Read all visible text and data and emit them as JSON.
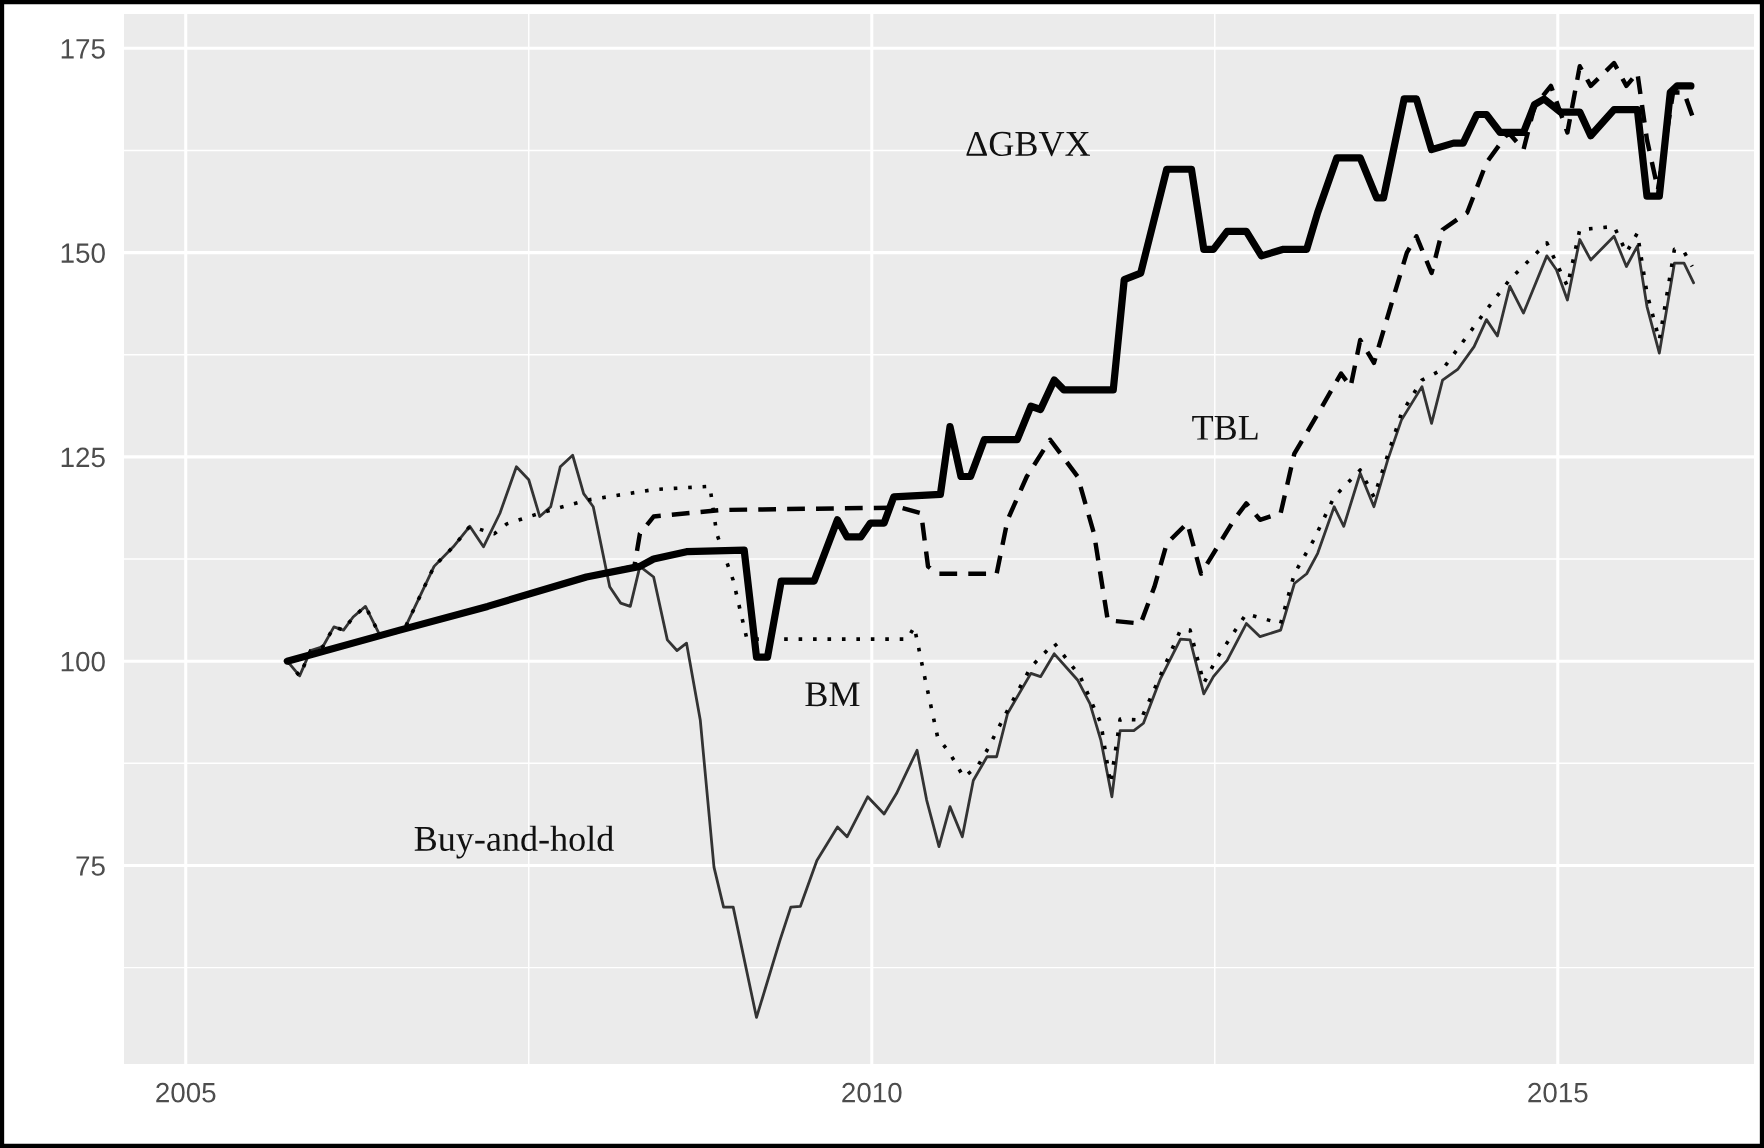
{
  "chart_data": {
    "type": "line",
    "xlim": [
      2004.55,
      2016.43
    ],
    "xticks": [
      2005,
      2010,
      2015
    ],
    "ylim": [
      50.7,
      179.2
    ],
    "yticks": [
      75,
      100,
      125,
      150,
      175
    ],
    "grid": true,
    "legend": false,
    "series": [
      {
        "name": "Buy-and-hold",
        "color": "#333333",
        "line_style": "solid",
        "x": [
          2005.74,
          2005.83,
          2005.91,
          2006.0,
          2006.08,
          2006.15,
          2006.22,
          2006.31,
          2006.42,
          2006.59,
          2006.81,
          2006.95,
          2007.07,
          2007.17,
          2007.29,
          2007.41,
          2007.5,
          2007.58,
          2007.66,
          2007.73,
          2007.82,
          2007.9,
          2007.97,
          2008.09,
          2008.17,
          2008.24,
          2008.31,
          2008.41,
          2008.51,
          2008.58,
          2008.65,
          2008.75,
          2008.85,
          2008.92,
          2008.99,
          2009.16,
          2009.33,
          2009.41,
          2009.48,
          2009.6,
          2009.75,
          2009.82,
          2009.97,
          2010.09,
          2010.18,
          2010.33,
          2010.4,
          2010.49,
          2010.57,
          2010.66,
          2010.74,
          2010.84,
          2010.91,
          2010.99,
          2011.16,
          2011.23,
          2011.33,
          2011.5,
          2011.59,
          2011.67,
          2011.75,
          2011.81,
          2011.91,
          2011.98,
          2012.1,
          2012.25,
          2012.32,
          2012.42,
          2012.49,
          2012.59,
          2012.73,
          2012.83,
          2012.98,
          2013.08,
          2013.17,
          2013.25,
          2013.37,
          2013.44,
          2013.56,
          2013.66,
          2013.76,
          2013.86,
          2014.01,
          2014.08,
          2014.16,
          2014.27,
          2014.39,
          2014.48,
          2014.56,
          2014.65,
          2014.75,
          2014.92,
          2014.99,
          2015.07,
          2015.16,
          2015.24,
          2015.41,
          2015.5,
          2015.58,
          2015.65,
          2015.74,
          2015.85,
          2015.92,
          2015.99
        ],
        "values": [
          100,
          98.2,
          101.3,
          101.8,
          104.2,
          103.8,
          105.4,
          106.7,
          103,
          103.8,
          111.6,
          114,
          116.5,
          114,
          118.1,
          123.8,
          122.2,
          117.7,
          118.9,
          123.8,
          125.2,
          120.5,
          118.9,
          109.1,
          107.1,
          106.7,
          111.6,
          110.3,
          102.6,
          101.3,
          102.2,
          92.8,
          74.8,
          69.9,
          69.9,
          56.4,
          65.8,
          69.9,
          70,
          75.6,
          79.7,
          78.5,
          83.4,
          81.3,
          83.8,
          89.1,
          83,
          77.3,
          82.2,
          78.5,
          85.4,
          88.3,
          88.3,
          93.6,
          98.5,
          98.1,
          100.9,
          97.7,
          94.8,
          90.3,
          83.4,
          91.5,
          91.5,
          92.4,
          97.7,
          102.7,
          102.6,
          96,
          98.1,
          100.1,
          104.6,
          103,
          103.8,
          109.5,
          110.7,
          113.2,
          118.9,
          116.5,
          123,
          118.9,
          124.6,
          129.5,
          133.6,
          129.1,
          134.4,
          135.7,
          138.5,
          141.8,
          139.8,
          145.9,
          142.6,
          149.6,
          147.9,
          144.2,
          151.6,
          149.1,
          152,
          148.3,
          150.8,
          143.4,
          137.7,
          148.7,
          148.7,
          146.3
        ]
      },
      {
        "name": "BM",
        "color": "#000000",
        "line_style": "dotted",
        "x": [
          2005.74,
          2005.83,
          2005.91,
          2006.0,
          2006.08,
          2006.15,
          2006.22,
          2006.31,
          2006.42,
          2006.59,
          2006.81,
          2006.95,
          2007.07,
          2007.25,
          2007.34,
          2007.58,
          2007.92,
          2008.41,
          2008.82,
          2008.87,
          2008.99,
          2009.09,
          2010.26,
          2010.31,
          2010.38,
          2010.48,
          2010.57,
          2010.67,
          2010.77,
          2010.84,
          2010.99,
          2011.16,
          2011.33,
          2011.52,
          2011.67,
          2011.74,
          2011.81,
          2011.96,
          2012.1,
          2012.25,
          2012.32,
          2012.42,
          2012.52,
          2012.73,
          2012.98,
          2013.08,
          2013.22,
          2013.37,
          2013.56,
          2013.66,
          2013.86,
          2014.01,
          2014.16,
          2014.48,
          2014.65,
          2014.92,
          2015.07,
          2015.16,
          2015.41,
          2015.5,
          2015.58,
          2015.65,
          2015.74,
          2015.85,
          2015.92,
          2015.98
        ],
        "values": [
          100,
          98.2,
          101.3,
          101.8,
          104.2,
          103.8,
          105.4,
          106.7,
          103,
          103.8,
          111.6,
          114,
          116.5,
          115.6,
          116.8,
          118.1,
          119.7,
          121,
          121.4,
          115.6,
          109.9,
          102.7,
          102.7,
          104.2,
          98.5,
          90.7,
          88.7,
          85.8,
          87.1,
          89.1,
          94,
          99.3,
          102.2,
          98.1,
          92.4,
          85,
          92.9,
          92.8,
          98.1,
          103.8,
          103.8,
          97.3,
          100.5,
          105.8,
          104.6,
          110.7,
          114.8,
          120.1,
          123.4,
          120.1,
          130.3,
          134.4,
          135.7,
          143,
          146.7,
          151.2,
          145.9,
          152.8,
          153.2,
          150,
          152.4,
          145,
          139.3,
          150.4,
          150.1,
          148.3
        ]
      },
      {
        "name": "TBL",
        "color": "#000000",
        "line_style": "dashed",
        "x": [
          2005.74,
          2006.56,
          2007.2,
          2007.92,
          2008.27,
          2008.31,
          2008.41,
          2008.9,
          2010.21,
          2010.36,
          2010.41,
          2010.48,
          2010.91,
          2010.99,
          2011.13,
          2011.3,
          2011.5,
          2011.62,
          2011.72,
          2011.96,
          2012.06,
          2012.15,
          2012.3,
          2012.4,
          2012.64,
          2012.73,
          2012.83,
          2012.98,
          2013.08,
          2013.27,
          2013.42,
          2013.49,
          2013.56,
          2013.66,
          2013.81,
          2013.9,
          2013.97,
          2014.08,
          2014.16,
          2014.34,
          2014.48,
          2014.64,
          2014.75,
          2014.83,
          2014.95,
          2015.07,
          2015.16,
          2015.24,
          2015.41,
          2015.5,
          2015.58,
          2015.65,
          2015.73,
          2015.84,
          2015.92,
          2015.99
        ],
        "values": [
          100,
          103.8,
          106.7,
          110.3,
          111.6,
          115.6,
          117.7,
          118.5,
          118.8,
          118.1,
          111.6,
          110.7,
          110.7,
          117.3,
          122.6,
          127.1,
          122.6,
          115.6,
          105,
          104.6,
          109.1,
          114.4,
          116.9,
          110.7,
          117.3,
          119.3,
          117.3,
          118.1,
          125.4,
          130.8,
          135.2,
          133.6,
          139.3,
          136.5,
          145,
          150,
          152,
          147.5,
          152.8,
          154.9,
          161,
          164.7,
          162.6,
          167.9,
          170.4,
          164.7,
          172.8,
          170.4,
          173.2,
          170.4,
          172,
          163.8,
          157.7,
          169.6,
          169.6,
          166.3
        ]
      },
      {
        "name": "ΔGBVX",
        "color": "#000000",
        "line_style": "solid",
        "x": [
          2005.74,
          2006.56,
          2007.2,
          2007.92,
          2008.31,
          2008.41,
          2008.65,
          2009.07,
          2009.16,
          2009.24,
          2009.34,
          2009.58,
          2009.75,
          2009.82,
          2009.92,
          2009.99,
          2010.09,
          2010.16,
          2010.5,
          2010.57,
          2010.65,
          2010.72,
          2010.82,
          2011.06,
          2011.16,
          2011.23,
          2011.33,
          2011.4,
          2011.76,
          2011.84,
          2011.96,
          2012.15,
          2012.33,
          2012.42,
          2012.49,
          2012.59,
          2012.73,
          2012.84,
          2013.0,
          2013.17,
          2013.25,
          2013.39,
          2013.56,
          2013.68,
          2013.73,
          2013.88,
          2013.97,
          2014.08,
          2014.24,
          2014.31,
          2014.41,
          2014.48,
          2014.58,
          2014.75,
          2014.83,
          2014.9,
          2015.02,
          2015.16,
          2015.24,
          2015.41,
          2015.58,
          2015.65,
          2015.74,
          2015.82,
          2015.87,
          2015.97
        ],
        "values": [
          100,
          103.8,
          106.7,
          110.3,
          111.6,
          112.5,
          113.4,
          113.6,
          100.5,
          100.5,
          109.8,
          109.8,
          117.3,
          115.2,
          115.2,
          116.9,
          116.9,
          120.1,
          120.4,
          128.7,
          122.6,
          122.6,
          127.1,
          127.1,
          131.2,
          130.8,
          134.4,
          133.2,
          133.2,
          146.7,
          147.5,
          160.2,
          160.2,
          150.4,
          150.4,
          152.6,
          152.6,
          149.6,
          150.4,
          150.4,
          154.9,
          161.6,
          161.6,
          156.7,
          156.7,
          168.8,
          168.8,
          162.6,
          163.4,
          163.4,
          166.9,
          166.9,
          164.7,
          164.7,
          168.1,
          168.8,
          167.2,
          167.2,
          164.3,
          167.5,
          167.5,
          156.9,
          156.9,
          169.6,
          170.4,
          170.4
        ]
      }
    ]
  }
}
